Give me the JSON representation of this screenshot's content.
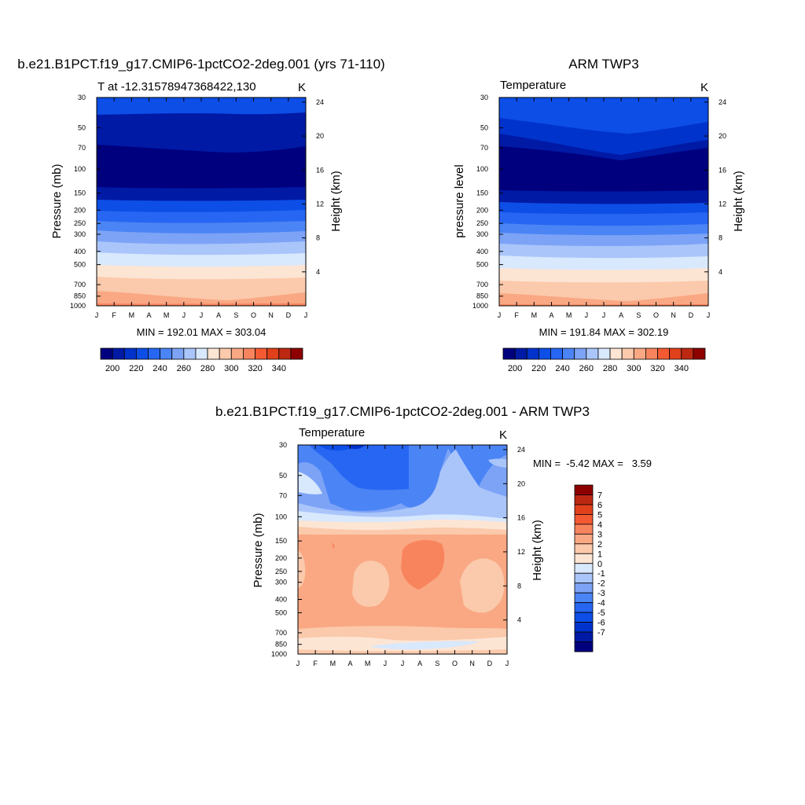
{
  "months": [
    "J",
    "F",
    "M",
    "A",
    "M",
    "J",
    "J",
    "A",
    "S",
    "O",
    "N",
    "D",
    "J"
  ],
  "pressure_ticks": [
    "30",
    "50",
    "70",
    "100",
    "150",
    "200",
    "250",
    "300",
    "400",
    "500",
    "700",
    "850",
    "1000"
  ],
  "height_ticks": [
    "24",
    "20",
    "16",
    "12",
    "8",
    "4"
  ],
  "palette": [
    "#00007f",
    "#001aa6",
    "#0033cc",
    "#0d4ee6",
    "#2766f2",
    "#4b84f5",
    "#7ca3f6",
    "#aac5fa",
    "#d8e8fd",
    "#fde5d4",
    "#fbc9ab",
    "#f9a883",
    "#f8845e",
    "#f45a32",
    "#e0401a",
    "#bd2812",
    "#8e0000"
  ],
  "panels": [
    {
      "title": "b.e21.B1PCT.f19_g17.CMIP6-1pctCO2-2deg.001 (yrs 71-110)",
      "subtitle_left": "T at -12.31578947368422,130",
      "subtitle_right": "K",
      "ylabel_left": "Pressure (mb)",
      "ylabel_right": "Height (km)",
      "stats": "MIN = 192.01 MAX = 303.04",
      "colorbar_labels": [
        "200",
        "220",
        "240",
        "260",
        "280",
        "300",
        "320",
        "340"
      ]
    },
    {
      "title": "ARM TWP3",
      "subtitle_left": "Temperature",
      "subtitle_right": "K",
      "ylabel_left": "pressure level",
      "ylabel_right": "Height (km)",
      "stats": "MIN = 191.84 MAX = 302.19",
      "colorbar_labels": [
        "200",
        "220",
        "240",
        "260",
        "280",
        "300",
        "320",
        "340"
      ]
    },
    {
      "title": "b.e21.B1PCT.f19_g17.CMIP6-1pctCO2-2deg.001 - ARM TWP3",
      "subtitle_left": "Temperature",
      "subtitle_right": "K",
      "ylabel_left": "Pressure (mb)",
      "ylabel_right": "Height (km)",
      "stats": "MIN =  -5.42 MAX =   3.59",
      "colorbar_labels": [
        "7",
        "6",
        "5",
        "4",
        "3",
        "2",
        "1",
        "0",
        "-1",
        "-2",
        "-3",
        "-4",
        "-5",
        "-6",
        "-7"
      ]
    }
  ],
  "chart_data": [
    {
      "type": "heatmap",
      "title": "b.e21.B1PCT.f19_g17.CMIP6-1pctCO2-2deg.001 (yrs 71-110)",
      "subtitle": "T at -12.31578947368422,130",
      "units": "K",
      "xlabel": "",
      "ylabel": "Pressure (mb)",
      "ylabel_right": "Height (km)",
      "x": [
        "J",
        "F",
        "M",
        "A",
        "M",
        "J",
        "J",
        "A",
        "S",
        "O",
        "N",
        "D",
        "J"
      ],
      "y_pressure": [
        30,
        50,
        70,
        100,
        150,
        200,
        250,
        300,
        400,
        500,
        700,
        850,
        1000
      ],
      "y_scale": "log, reversed",
      "contour_levels": [
        195,
        200,
        205,
        210,
        215,
        220,
        225,
        230,
        235,
        240,
        245,
        250,
        255,
        260,
        265,
        270,
        275,
        280,
        285,
        290,
        295,
        300,
        305,
        310,
        315,
        320,
        325,
        330,
        335,
        340,
        345
      ],
      "colorbar_ticks": [
        200,
        220,
        240,
        260,
        280,
        300,
        320,
        340
      ],
      "min": 192.01,
      "max": 303.04
    },
    {
      "type": "heatmap",
      "title": "ARM TWP3",
      "subtitle": "Temperature",
      "units": "K",
      "xlabel": "",
      "ylabel": "pressure level",
      "ylabel_right": "Height (km)",
      "x": [
        "J",
        "F",
        "M",
        "A",
        "M",
        "J",
        "J",
        "A",
        "S",
        "O",
        "N",
        "D",
        "J"
      ],
      "y_pressure": [
        30,
        50,
        70,
        100,
        150,
        200,
        250,
        300,
        400,
        500,
        700,
        850,
        1000
      ],
      "y_scale": "log, reversed",
      "colorbar_ticks": [
        200,
        220,
        240,
        260,
        280,
        300,
        320,
        340
      ],
      "min": 191.84,
      "max": 302.19
    },
    {
      "type": "heatmap",
      "title": "b.e21.B1PCT.f19_g17.CMIP6-1pctCO2-2deg.001 - ARM TWP3",
      "subtitle": "Temperature",
      "units": "K",
      "xlabel": "",
      "ylabel": "Pressure (mb)",
      "ylabel_right": "Height (km)",
      "x": [
        "J",
        "F",
        "M",
        "A",
        "M",
        "J",
        "J",
        "A",
        "S",
        "O",
        "N",
        "D",
        "J"
      ],
      "y_pressure": [
        30,
        50,
        70,
        100,
        150,
        200,
        250,
        300,
        400,
        500,
        700,
        850,
        1000
      ],
      "y_scale": "log, reversed",
      "colorbar_ticks": [
        7,
        6,
        5,
        4,
        3,
        2,
        1,
        0,
        -1,
        -2,
        -3,
        -4,
        -5,
        -6,
        -7
      ],
      "min": -5.42,
      "max": 3.59
    }
  ]
}
